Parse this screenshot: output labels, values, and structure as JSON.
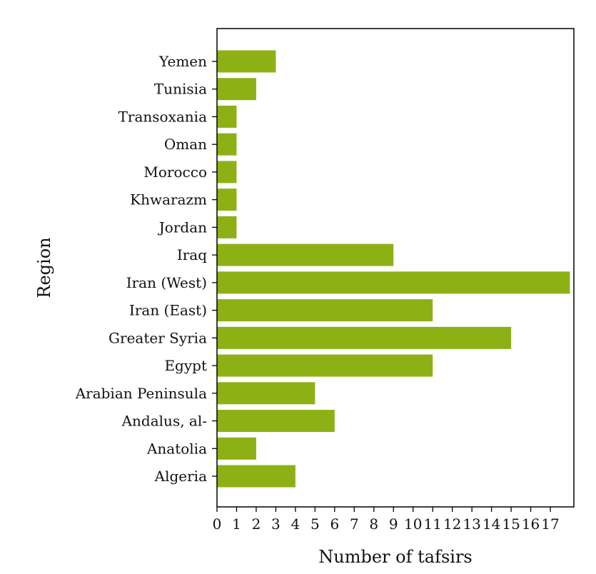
{
  "chart_data": {
    "type": "bar",
    "orientation": "horizontal",
    "xlabel": "Number of tafsirs",
    "ylabel": "Region",
    "xlim": [
      0,
      18.2
    ],
    "x_ticks": [
      0,
      1,
      2,
      3,
      4,
      5,
      6,
      7,
      8,
      9,
      10,
      11,
      12,
      13,
      14,
      15,
      16,
      17
    ],
    "categories": [
      "Algeria",
      "Anatolia",
      "Andalus, al-",
      "Arabian Peninsula",
      "Egypt",
      "Greater Syria",
      "Iran (East)",
      "Iran (West)",
      "Iraq",
      "Jordan ",
      "Khwarazm",
      "Morocco",
      "Oman",
      "Transoxania",
      "Tunisia",
      "Yemen"
    ],
    "values": [
      4,
      2,
      6,
      5,
      11,
      15,
      11,
      18,
      9,
      1,
      1,
      1,
      1,
      1,
      2,
      3
    ],
    "bar_color": "#8db115",
    "grid": false,
    "legend": "none"
  }
}
